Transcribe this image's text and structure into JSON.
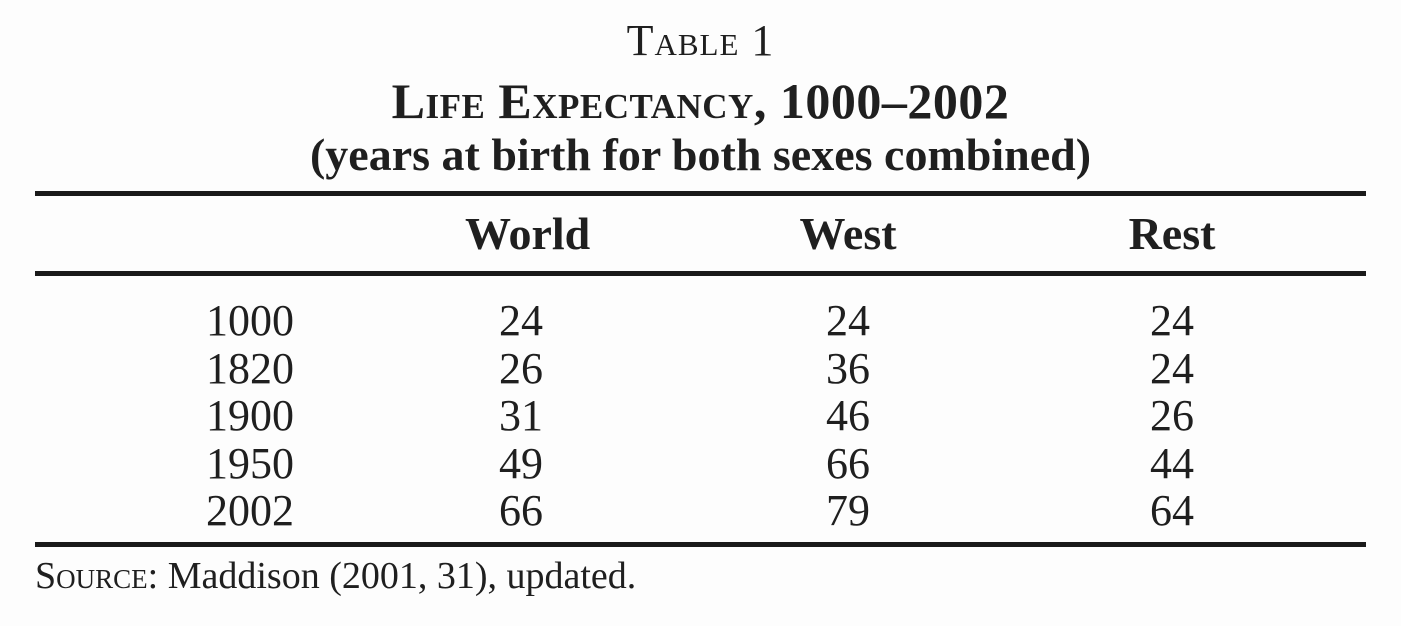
{
  "document": {
    "label": "Table 1",
    "title": "Life Expectancy, 1000–2002",
    "subtitle": "(years at birth for both sexes combined)",
    "columns": [
      "World",
      "West",
      "Rest"
    ],
    "rows": [
      {
        "year": "1000",
        "world": "24",
        "west": "24",
        "rest": "24"
      },
      {
        "year": "1820",
        "world": "26",
        "west": "36",
        "rest": "24"
      },
      {
        "year": "1900",
        "world": "31",
        "west": "46",
        "rest": "26"
      },
      {
        "year": "1950",
        "world": "49",
        "west": "66",
        "rest": "44"
      },
      {
        "year": "2002",
        "world": "66",
        "west": "79",
        "rest": "64"
      }
    ],
    "source_label": "Source:",
    "source_text": "Maddison (2001, 31), updated."
  },
  "colors": {
    "text": "#1f1f1f",
    "rule": "#1a1a1a",
    "background": "#fdfdfd"
  },
  "chart_data": {
    "type": "table",
    "title": "Life Expectancy, 1000–2002",
    "subtitle": "(years at birth for both sexes combined)",
    "categories": [
      "1000",
      "1820",
      "1900",
      "1950",
      "2002"
    ],
    "series": [
      {
        "name": "World",
        "values": [
          24,
          26,
          31,
          49,
          66
        ]
      },
      {
        "name": "West",
        "values": [
          24,
          36,
          46,
          66,
          79
        ]
      },
      {
        "name": "Rest",
        "values": [
          24,
          24,
          26,
          44,
          64
        ]
      }
    ],
    "source": "Source: Maddison (2001, 31), updated."
  }
}
